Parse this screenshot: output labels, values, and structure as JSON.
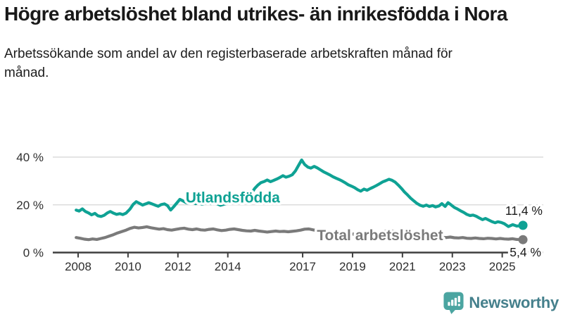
{
  "header": {
    "title": "Högre arbetslöshet bland utrikes- än inrikesfödda i Nora",
    "subtitle": "Arbetssökande som andel av den registerbaserade arbetskraften månad för månad."
  },
  "branding": {
    "logo_text": "Newsworthy",
    "logo_color": "#4BA5A1",
    "text_color": "#45808C"
  },
  "chart_data": {
    "type": "line",
    "unit": "%",
    "ylim": [
      0,
      44
    ],
    "grid": "horizontal",
    "yticks": [
      {
        "value": 0,
        "label": "0 %"
      },
      {
        "value": 20,
        "label": "20 %"
      },
      {
        "value": 40,
        "label": "40 %"
      }
    ],
    "xticks": [
      {
        "year": 2008,
        "label": "2008"
      },
      {
        "year": 2010,
        "label": "2010"
      },
      {
        "year": 2012,
        "label": "2012"
      },
      {
        "year": 2014,
        "label": "2014"
      },
      {
        "year": 2017,
        "label": "2017"
      },
      {
        "year": 2019,
        "label": "2019"
      },
      {
        "year": 2021,
        "label": "2021"
      },
      {
        "year": 2023,
        "label": "2023"
      },
      {
        "year": 2025,
        "label": "2025"
      }
    ],
    "series": [
      {
        "name": "utlandsfodda",
        "label": "Utlandsfödda",
        "color": "#0FA294",
        "end_label": "11,4 %",
        "end_value": 11.4,
        "label_anchor": {
          "year": 2014.2,
          "value": 23.2
        },
        "points": [
          [
            2007.92,
            17.8
          ],
          [
            2008.04,
            17.4
          ],
          [
            2008.17,
            18.3
          ],
          [
            2008.29,
            17.2
          ],
          [
            2008.42,
            16.6
          ],
          [
            2008.54,
            15.8
          ],
          [
            2008.67,
            16.4
          ],
          [
            2008.79,
            15.4
          ],
          [
            2008.92,
            15.1
          ],
          [
            2009.04,
            15.6
          ],
          [
            2009.17,
            16.6
          ],
          [
            2009.29,
            17.2
          ],
          [
            2009.42,
            16.5
          ],
          [
            2009.54,
            16.0
          ],
          [
            2009.67,
            16.3
          ],
          [
            2009.79,
            15.9
          ],
          [
            2009.92,
            16.5
          ],
          [
            2010.08,
            18.2
          ],
          [
            2010.21,
            20.2
          ],
          [
            2010.33,
            21.3
          ],
          [
            2010.46,
            20.6
          ],
          [
            2010.58,
            19.9
          ],
          [
            2010.71,
            20.4
          ],
          [
            2010.83,
            20.9
          ],
          [
            2010.96,
            20.4
          ],
          [
            2011.08,
            19.9
          ],
          [
            2011.21,
            19.4
          ],
          [
            2011.33,
            20.1
          ],
          [
            2011.46,
            20.4
          ],
          [
            2011.58,
            19.7
          ],
          [
            2011.71,
            17.8
          ],
          [
            2011.83,
            19.2
          ],
          [
            2011.96,
            20.8
          ],
          [
            2012.08,
            22.3
          ],
          [
            2012.21,
            21.6
          ],
          [
            2012.33,
            20.9
          ],
          [
            2012.46,
            20.6
          ],
          [
            2012.58,
            21.0
          ],
          [
            2012.71,
            20.5
          ],
          [
            2012.83,
            20.8
          ],
          [
            2012.96,
            20.3
          ],
          [
            2013.08,
            20.6
          ],
          [
            2013.21,
            21.0
          ],
          [
            2013.33,
            20.5
          ],
          [
            2013.46,
            20.8
          ],
          [
            2013.58,
            20.4
          ],
          [
            2013.71,
            19.8
          ],
          [
            2013.83,
            20.2
          ],
          [
            2013.96,
            20.6
          ],
          [
            2014.08,
            21.0
          ],
          [
            2014.21,
            21.6
          ],
          [
            2014.33,
            21.2
          ],
          [
            2014.46,
            21.9
          ],
          [
            2014.58,
            22.4
          ],
          [
            2014.71,
            23.1
          ],
          [
            2014.83,
            23.8
          ],
          [
            2014.96,
            25.0
          ],
          [
            2015.08,
            26.9
          ],
          [
            2015.21,
            28.3
          ],
          [
            2015.33,
            29.3
          ],
          [
            2015.46,
            29.8
          ],
          [
            2015.58,
            30.4
          ],
          [
            2015.71,
            29.7
          ],
          [
            2015.83,
            30.2
          ],
          [
            2015.96,
            30.8
          ],
          [
            2016.08,
            31.4
          ],
          [
            2016.21,
            32.2
          ],
          [
            2016.33,
            31.6
          ],
          [
            2016.46,
            32.0
          ],
          [
            2016.58,
            32.6
          ],
          [
            2016.71,
            34.2
          ],
          [
            2016.83,
            36.4
          ],
          [
            2016.96,
            38.8
          ],
          [
            2017.08,
            36.9
          ],
          [
            2017.21,
            35.8
          ],
          [
            2017.33,
            35.4
          ],
          [
            2017.46,
            36.1
          ],
          [
            2017.58,
            35.5
          ],
          [
            2017.71,
            34.7
          ],
          [
            2017.83,
            33.9
          ],
          [
            2017.96,
            33.2
          ],
          [
            2018.08,
            32.6
          ],
          [
            2018.21,
            31.8
          ],
          [
            2018.33,
            31.2
          ],
          [
            2018.46,
            30.6
          ],
          [
            2018.58,
            30.0
          ],
          [
            2018.71,
            29.2
          ],
          [
            2018.83,
            28.4
          ],
          [
            2018.96,
            27.8
          ],
          [
            2019.08,
            27.2
          ],
          [
            2019.21,
            26.3
          ],
          [
            2019.33,
            25.7
          ],
          [
            2019.46,
            26.6
          ],
          [
            2019.58,
            26.1
          ],
          [
            2019.71,
            26.8
          ],
          [
            2019.83,
            27.4
          ],
          [
            2019.96,
            28.1
          ],
          [
            2020.08,
            28.8
          ],
          [
            2020.21,
            29.6
          ],
          [
            2020.33,
            30.1
          ],
          [
            2020.46,
            30.7
          ],
          [
            2020.58,
            30.3
          ],
          [
            2020.71,
            29.5
          ],
          [
            2020.83,
            28.3
          ],
          [
            2020.96,
            26.9
          ],
          [
            2021.08,
            25.4
          ],
          [
            2021.21,
            24.1
          ],
          [
            2021.33,
            22.8
          ],
          [
            2021.46,
            21.6
          ],
          [
            2021.58,
            20.6
          ],
          [
            2021.71,
            19.8
          ],
          [
            2021.83,
            19.4
          ],
          [
            2021.96,
            19.9
          ],
          [
            2022.08,
            19.3
          ],
          [
            2022.21,
            19.7
          ],
          [
            2022.33,
            19.1
          ],
          [
            2022.46,
            19.5
          ],
          [
            2022.58,
            20.5
          ],
          [
            2022.71,
            19.3
          ],
          [
            2022.83,
            20.9
          ],
          [
            2022.96,
            19.9
          ],
          [
            2023.08,
            18.9
          ],
          [
            2023.21,
            18.2
          ],
          [
            2023.33,
            17.5
          ],
          [
            2023.46,
            16.8
          ],
          [
            2023.58,
            16.0
          ],
          [
            2023.71,
            15.5
          ],
          [
            2023.83,
            15.7
          ],
          [
            2023.96,
            15.2
          ],
          [
            2024.08,
            14.5
          ],
          [
            2024.21,
            13.8
          ],
          [
            2024.33,
            14.3
          ],
          [
            2024.46,
            13.6
          ],
          [
            2024.58,
            13.0
          ],
          [
            2024.71,
            12.5
          ],
          [
            2024.83,
            12.9
          ],
          [
            2024.96,
            12.6
          ],
          [
            2025.08,
            12.1
          ],
          [
            2025.25,
            10.9
          ],
          [
            2025.42,
            11.7
          ],
          [
            2025.58,
            11.1
          ],
          [
            2025.83,
            11.4
          ]
        ]
      },
      {
        "name": "total",
        "label": "Total arbetslöshet",
        "color": "#7A7A7A",
        "end_label": "5,4 %",
        "end_value": 5.4,
        "label_anchor": {
          "year": 2020.1,
          "value": 7.3
        },
        "points": [
          [
            2007.92,
            6.3
          ],
          [
            2008.08,
            6.0
          ],
          [
            2008.25,
            5.6
          ],
          [
            2008.42,
            5.4
          ],
          [
            2008.58,
            5.7
          ],
          [
            2008.75,
            5.5
          ],
          [
            2008.92,
            5.9
          ],
          [
            2009.08,
            6.3
          ],
          [
            2009.25,
            6.9
          ],
          [
            2009.42,
            7.5
          ],
          [
            2009.58,
            8.2
          ],
          [
            2009.75,
            8.8
          ],
          [
            2009.92,
            9.4
          ],
          [
            2010.08,
            10.1
          ],
          [
            2010.25,
            10.6
          ],
          [
            2010.42,
            10.3
          ],
          [
            2010.58,
            10.5
          ],
          [
            2010.75,
            10.8
          ],
          [
            2010.92,
            10.4
          ],
          [
            2011.08,
            10.1
          ],
          [
            2011.25,
            9.8
          ],
          [
            2011.42,
            10.0
          ],
          [
            2011.58,
            9.6
          ],
          [
            2011.75,
            9.4
          ],
          [
            2011.92,
            9.7
          ],
          [
            2012.08,
            10.0
          ],
          [
            2012.25,
            10.2
          ],
          [
            2012.42,
            9.8
          ],
          [
            2012.58,
            9.6
          ],
          [
            2012.75,
            9.9
          ],
          [
            2012.92,
            9.5
          ],
          [
            2013.08,
            9.4
          ],
          [
            2013.25,
            9.7
          ],
          [
            2013.42,
            9.9
          ],
          [
            2013.58,
            9.5
          ],
          [
            2013.75,
            9.2
          ],
          [
            2013.92,
            9.4
          ],
          [
            2014.08,
            9.7
          ],
          [
            2014.25,
            9.9
          ],
          [
            2014.42,
            9.6
          ],
          [
            2014.58,
            9.3
          ],
          [
            2014.75,
            9.1
          ],
          [
            2014.92,
            9.0
          ],
          [
            2015.08,
            9.3
          ],
          [
            2015.25,
            9.0
          ],
          [
            2015.42,
            8.8
          ],
          [
            2015.58,
            8.6
          ],
          [
            2015.75,
            8.8
          ],
          [
            2015.92,
            9.0
          ],
          [
            2016.08,
            8.8
          ],
          [
            2016.25,
            8.9
          ],
          [
            2016.42,
            8.7
          ],
          [
            2016.58,
            8.9
          ],
          [
            2016.75,
            9.1
          ],
          [
            2016.92,
            9.4
          ],
          [
            2017.08,
            9.8
          ],
          [
            2017.25,
            9.9
          ],
          [
            2017.42,
            9.5
          ],
          [
            2017.58,
            9.2
          ],
          [
            2017.75,
            9.0
          ],
          [
            2017.92,
            8.8
          ],
          [
            2018.08,
            8.7
          ],
          [
            2018.25,
            8.5
          ],
          [
            2018.42,
            8.3
          ],
          [
            2018.58,
            8.1
          ],
          [
            2018.75,
            8.0
          ],
          [
            2018.92,
            7.8
          ],
          [
            2019.08,
            7.7
          ],
          [
            2019.25,
            7.8
          ],
          [
            2019.42,
            7.6
          ],
          [
            2019.58,
            7.5
          ],
          [
            2019.75,
            7.7
          ],
          [
            2019.92,
            7.9
          ],
          [
            2020.08,
            8.3
          ],
          [
            2020.25,
            8.8
          ],
          [
            2020.42,
            9.2
          ],
          [
            2020.58,
            9.0
          ],
          [
            2020.75,
            8.8
          ],
          [
            2020.92,
            8.6
          ],
          [
            2021.08,
            8.4
          ],
          [
            2021.25,
            8.1
          ],
          [
            2021.42,
            7.8
          ],
          [
            2021.58,
            7.5
          ],
          [
            2021.75,
            7.3
          ],
          [
            2021.92,
            7.1
          ],
          [
            2022.08,
            6.9
          ],
          [
            2022.25,
            6.7
          ],
          [
            2022.42,
            6.6
          ],
          [
            2022.58,
            6.4
          ],
          [
            2022.75,
            6.3
          ],
          [
            2022.92,
            6.5
          ],
          [
            2023.08,
            6.2
          ],
          [
            2023.25,
            6.1
          ],
          [
            2023.42,
            6.3
          ],
          [
            2023.58,
            6.0
          ],
          [
            2023.75,
            5.9
          ],
          [
            2023.92,
            6.1
          ],
          [
            2024.08,
            5.9
          ],
          [
            2024.25,
            5.8
          ],
          [
            2024.42,
            6.0
          ],
          [
            2024.58,
            5.9
          ],
          [
            2024.75,
            5.7
          ],
          [
            2024.92,
            5.9
          ],
          [
            2025.08,
            5.7
          ],
          [
            2025.25,
            5.6
          ],
          [
            2025.42,
            5.8
          ],
          [
            2025.58,
            5.5
          ],
          [
            2025.83,
            5.4
          ]
        ]
      }
    ]
  }
}
